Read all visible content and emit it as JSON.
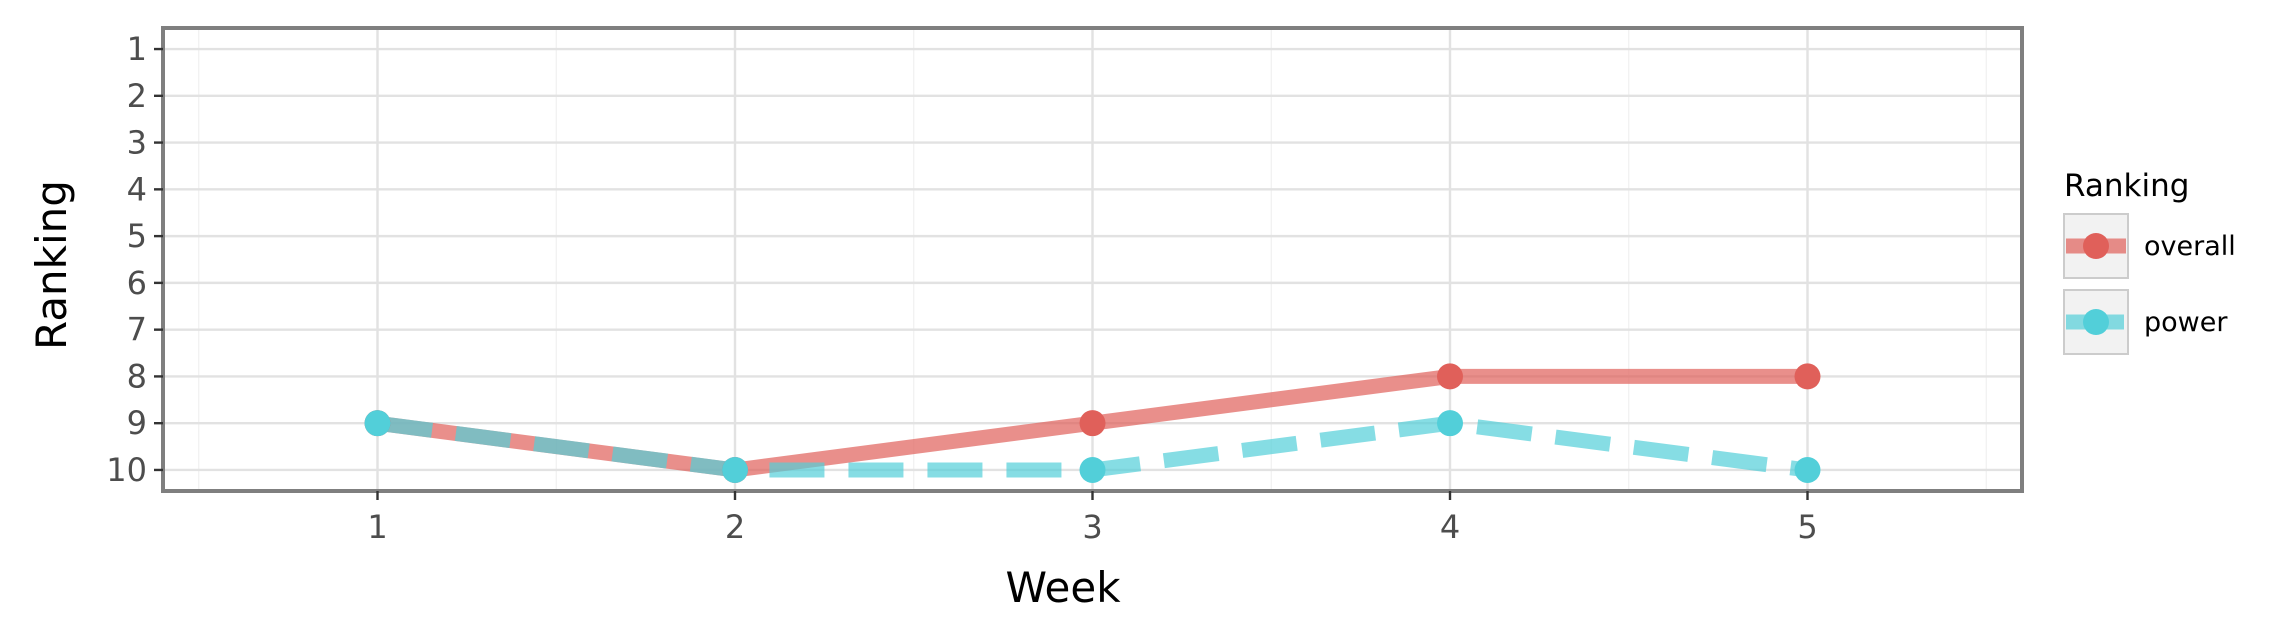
{
  "chart_data": {
    "type": "line",
    "xlabel": "Week",
    "ylabel": "Ranking",
    "x": [
      1,
      2,
      3,
      4,
      5
    ],
    "xlim": [
      0.4,
      5.6
    ],
    "ylim": [
      10.45,
      0.55
    ],
    "y_reversed": true,
    "x_ticks": [
      1,
      2,
      3,
      4,
      5
    ],
    "y_ticks": [
      1,
      2,
      3,
      4,
      5,
      6,
      7,
      8,
      9,
      10
    ],
    "grid": true,
    "legend": {
      "title": "Ranking",
      "placement": "right",
      "entries": [
        {
          "label": "overall",
          "color": "#e0605a",
          "line_style": "solid"
        },
        {
          "label": "power",
          "color": "#52cfd9",
          "line_style": "dashed"
        }
      ]
    },
    "series": [
      {
        "name": "overall",
        "values": [
          9,
          10,
          9,
          8,
          8
        ],
        "color": "#e0605a",
        "line_style": "solid"
      },
      {
        "name": "power",
        "values": [
          9,
          10,
          10,
          9,
          10
        ],
        "color": "#52cfd9",
        "line_style": "dashed"
      }
    ]
  }
}
